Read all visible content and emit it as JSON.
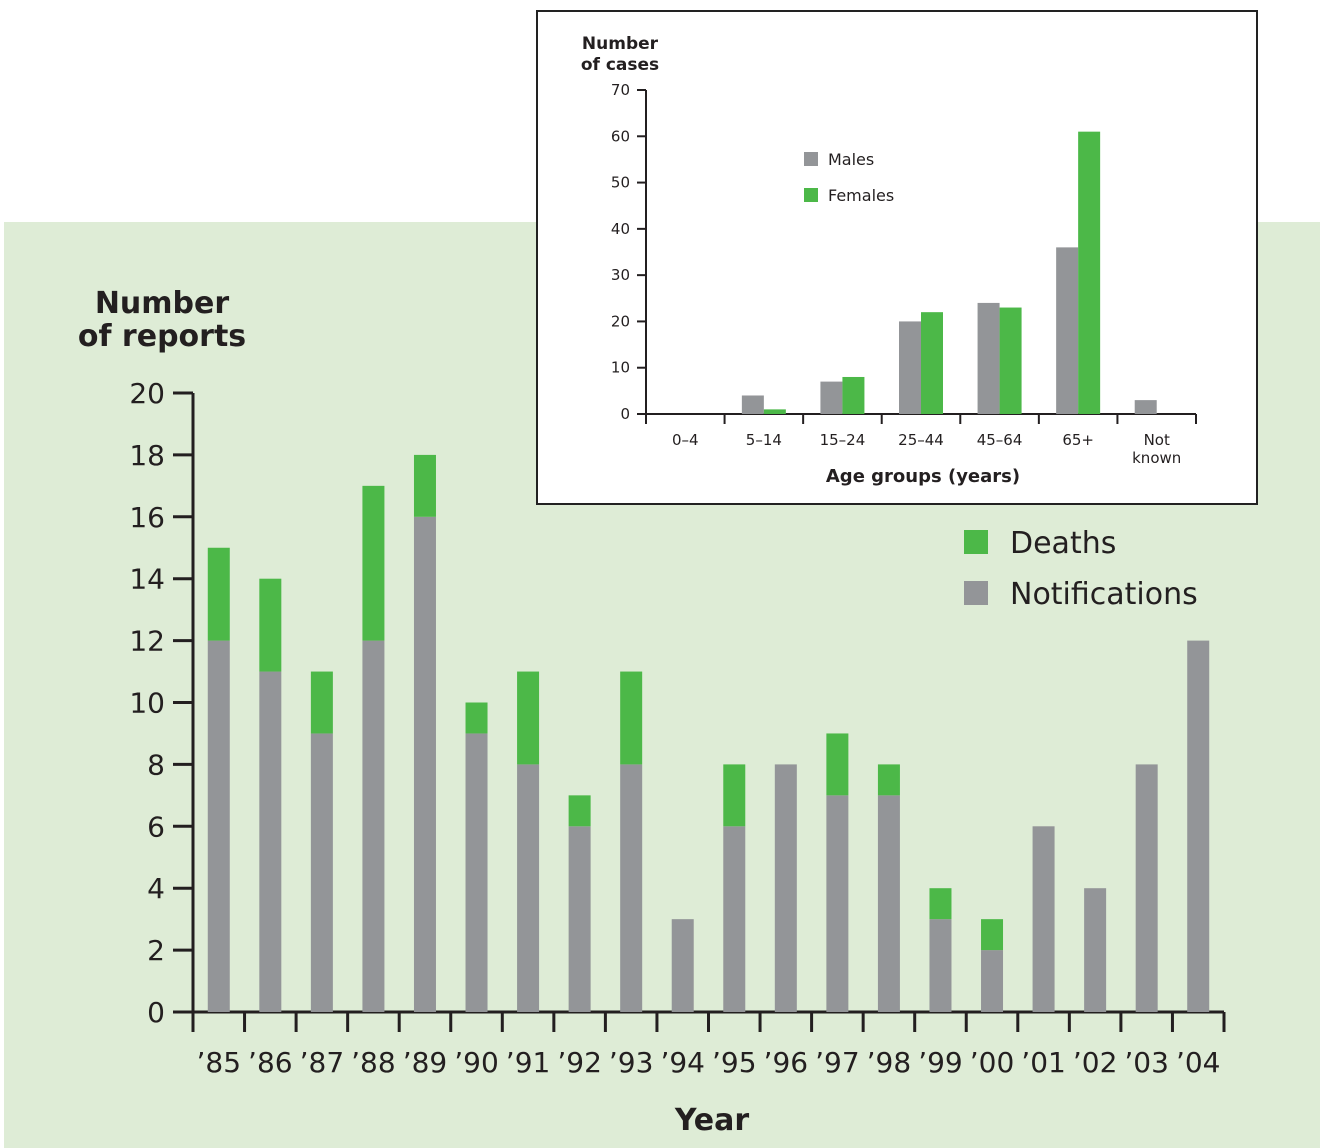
{
  "chart_data": [
    {
      "type": "bar",
      "stacked": true,
      "ylabel": [
        "Number",
        "of reports"
      ],
      "xlabel": "Year",
      "categories": [
        "’85",
        "’86",
        "’87",
        "’88",
        "’89",
        "’90",
        "’91",
        "’92",
        "’93",
        "’94",
        "’95",
        "’96",
        "’97",
        "’98",
        "’99",
        "’00",
        "’01",
        "’02",
        "’03",
        "’04"
      ],
      "ylim": [
        0,
        20
      ],
      "yticks": [
        "0",
        "2",
        "4",
        "6",
        "8",
        "10",
        "12",
        "14",
        "16",
        "18",
        "20"
      ],
      "series": [
        {
          "name": "Notifications",
          "color": "#939598",
          "values": [
            12,
            11,
            9,
            12,
            16,
            9,
            8,
            6,
            8,
            3,
            6,
            8,
            7,
            7,
            3,
            2,
            6,
            4,
            8,
            12
          ]
        },
        {
          "name": "Deaths",
          "color": "#4cb848",
          "values": [
            3,
            3,
            2,
            5,
            2,
            1,
            3,
            1,
            3,
            0,
            2,
            0,
            2,
            1,
            1,
            1,
            0,
            0,
            0,
            0
          ]
        }
      ],
      "legend": {
        "position": "top-right",
        "order": [
          "Deaths",
          "Notifications"
        ]
      },
      "background": "#deecd6"
    },
    {
      "type": "bar",
      "grouped": true,
      "ylabel": [
        "Number",
        "of cases"
      ],
      "xlabel": "Age groups (years)",
      "categories": [
        [
          "0–4"
        ],
        [
          "5–14"
        ],
        [
          "15–24"
        ],
        [
          "25–44"
        ],
        [
          "45–64"
        ],
        [
          "65+"
        ],
        [
          "Not",
          "known"
        ]
      ],
      "ylim": [
        0,
        70
      ],
      "yticks": [
        "0",
        "10",
        "20",
        "30",
        "40",
        "50",
        "60",
        "70"
      ],
      "series": [
        {
          "name": "Males",
          "color": "#939598",
          "values": [
            0,
            4,
            7,
            20,
            24,
            36,
            3
          ]
        },
        {
          "name": "Females",
          "color": "#4cb848",
          "values": [
            0,
            1,
            8,
            22,
            23,
            61,
            0
          ]
        }
      ],
      "legend": {
        "position": "top-left"
      }
    }
  ]
}
